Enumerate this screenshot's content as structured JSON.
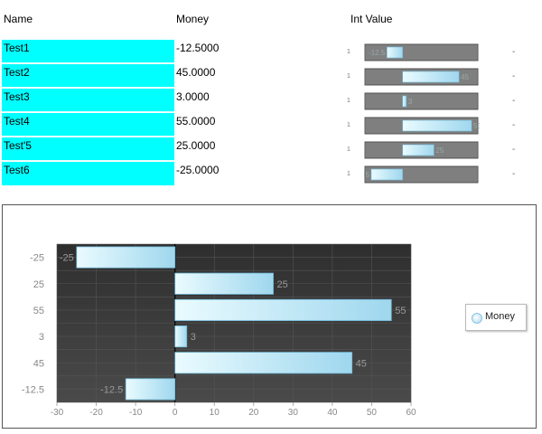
{
  "grid": {
    "headers": {
      "name": "Name",
      "money": "Money",
      "int_value": "Int Value"
    },
    "rows": [
      {
        "name": "Test1",
        "money": "-12.5000",
        "value": -12.5,
        "bar_label": "-12.5",
        "min_label": "1",
        "end_label": "-"
      },
      {
        "name": "Test2",
        "money": "45.0000",
        "value": 45,
        "bar_label": "45",
        "min_label": "1",
        "end_label": "-"
      },
      {
        "name": "Test3",
        "money": "3.0000",
        "value": 3,
        "bar_label": "3",
        "min_label": "1",
        "end_label": "-"
      },
      {
        "name": "Test4",
        "money": "55.0000",
        "value": 55,
        "bar_label": "55",
        "min_label": "1",
        "end_label": "-"
      },
      {
        "name": "Test'5",
        "money": "25.0000",
        "value": 25,
        "bar_label": "25",
        "min_label": "1",
        "end_label": "-"
      },
      {
        "name": "Test6",
        "money": "-25.0000",
        "value": -25,
        "bar_label": "-25",
        "min_label": "1",
        "end_label": "-"
      }
    ]
  },
  "colors": {
    "name_cell_bg": "#00ffff",
    "plot_bg": "#3c3c3c",
    "bar_light": "#eafbff",
    "bar_dark": "#9fd7ee",
    "bar_stroke": "#6fb7d6"
  },
  "chart_data": {
    "type": "bar",
    "orientation": "horizontal",
    "categories": [
      "-25",
      "25",
      "55",
      "3",
      "45",
      "-12.5"
    ],
    "series": [
      {
        "name": "Money",
        "values": [
          -25,
          25,
          55,
          3,
          45,
          -12.5
        ]
      }
    ],
    "data_labels": [
      "-25",
      "25",
      "55",
      "3",
      "45",
      "-12.5"
    ],
    "x_ticks": [
      "-30",
      "-20",
      "-10",
      "0",
      "10",
      "20",
      "30",
      "40",
      "50",
      "60"
    ],
    "xlim": [
      -30,
      60
    ],
    "grid": true,
    "legend": {
      "label": "Money",
      "placement": "right"
    }
  }
}
